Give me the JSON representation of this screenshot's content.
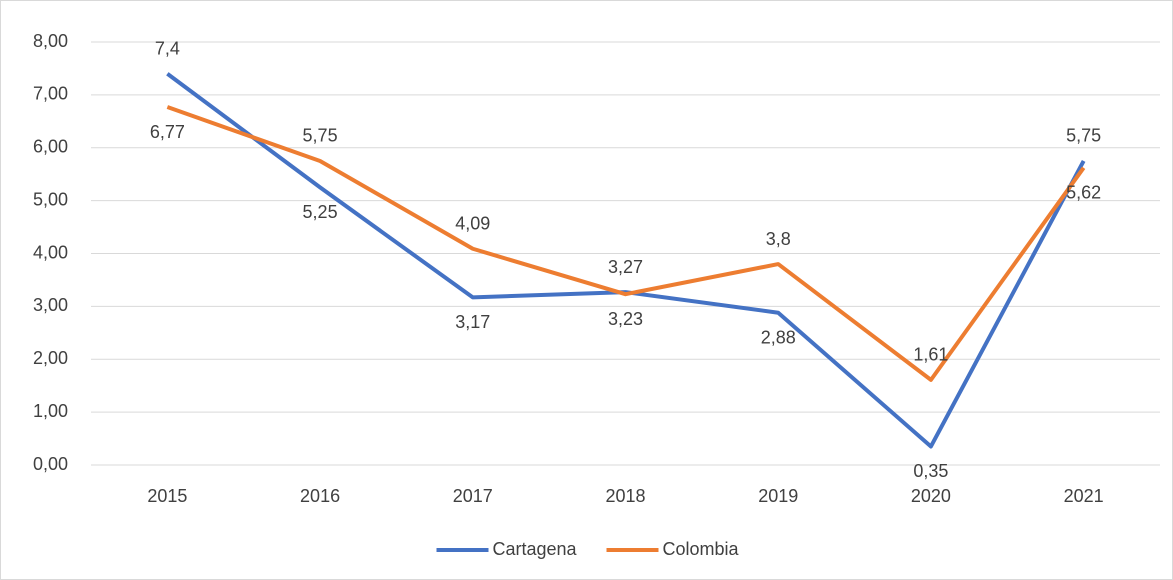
{
  "chart_data": {
    "type": "line",
    "categories": [
      "2015",
      "2016",
      "2017",
      "2018",
      "2019",
      "2020",
      "2021"
    ],
    "series": [
      {
        "name": "Cartagena",
        "color": "#4472c4",
        "values": [
          7.4,
          5.25,
          3.17,
          3.27,
          2.88,
          0.35,
          5.75
        ],
        "value_labels": [
          "7,4",
          "5,25",
          "3,17",
          "3,27",
          "2,88",
          "0,35",
          "5,75"
        ]
      },
      {
        "name": "Colombia",
        "color": "#ed7d31",
        "values": [
          6.77,
          5.75,
          4.09,
          3.23,
          3.8,
          1.61,
          5.62
        ],
        "value_labels": [
          "6,77",
          "5,75",
          "4,09",
          "3,23",
          "3,8",
          "1,61",
          "5,62"
        ]
      }
    ],
    "ylim": [
      0,
      8
    ],
    "yticks": [
      {
        "value": 0,
        "label": "0,00"
      },
      {
        "value": 1,
        "label": "1,00"
      },
      {
        "value": 2,
        "label": "2,00"
      },
      {
        "value": 3,
        "label": "3,00"
      },
      {
        "value": 4,
        "label": "4,00"
      },
      {
        "value": 5,
        "label": "5,00"
      },
      {
        "value": 6,
        "label": "6,00"
      },
      {
        "value": 7,
        "label": "7,00"
      },
      {
        "value": 8,
        "label": "8,00"
      }
    ],
    "grid": true,
    "legend": "bottom"
  }
}
